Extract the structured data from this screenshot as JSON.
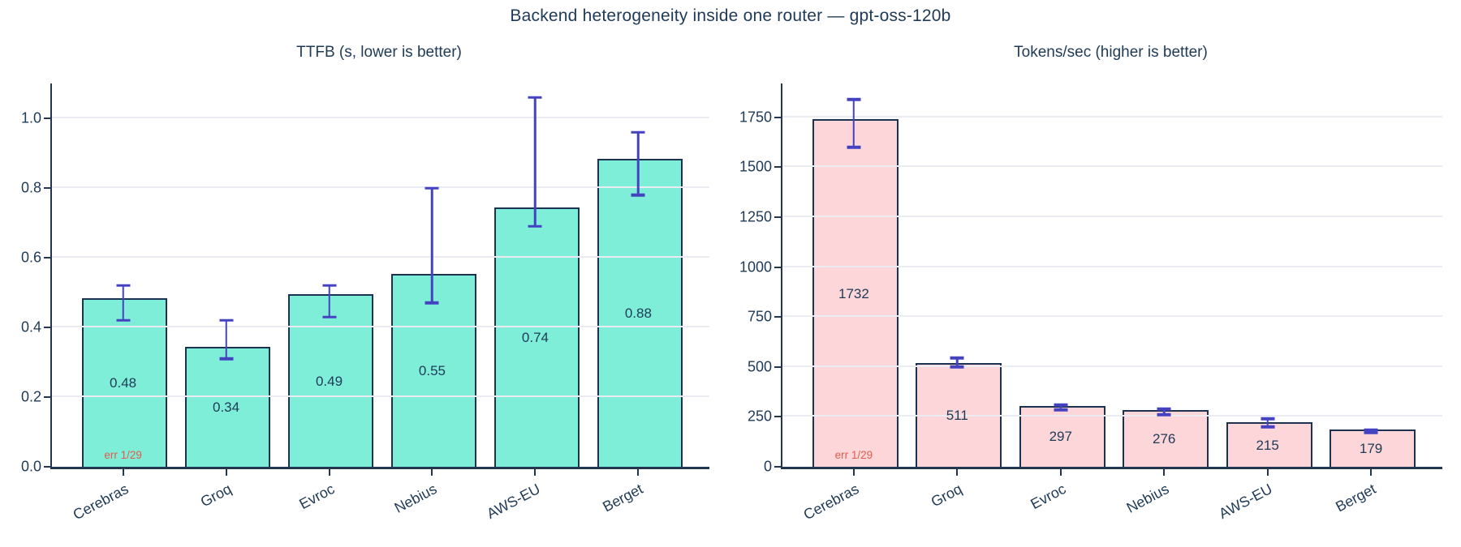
{
  "figure": {
    "title": "Backend heterogeneity inside one router — gpt-oss-120b"
  },
  "colors": {
    "background": "#ffffff",
    "text": "#1e3a56",
    "axis": "#22374f",
    "gridline": "#ebecf2",
    "bar_edge": "#1b3350",
    "error_bar": "#4542c2",
    "error_note": "#e25c4e",
    "ttfb_bar_fill": "#7feed9",
    "tokens_bar_fill": "#fcd6d8"
  },
  "chart_data": [
    {
      "type": "bar",
      "title": "TTFB (s, lower is better)",
      "categories": [
        "Cerebras",
        "Groq",
        "Evroc",
        "Nebius",
        "AWS-EU",
        "Berget"
      ],
      "values": [
        0.48,
        0.34,
        0.49,
        0.55,
        0.74,
        0.88
      ],
      "bar_labels": [
        "0.48",
        "0.34",
        "0.49",
        "0.55",
        "0.74",
        "0.88"
      ],
      "error_low": [
        0.42,
        0.31,
        0.43,
        0.47,
        0.69,
        0.78
      ],
      "error_high": [
        0.52,
        0.42,
        0.52,
        0.8,
        1.06,
        0.96
      ],
      "annotations": [
        {
          "category": "Cerebras",
          "text": "err 1/29"
        }
      ],
      "yticks": [
        0,
        0.2,
        0.4,
        0.6,
        0.8,
        1.0
      ],
      "ytick_labels": [
        "0.0",
        "0.2",
        "0.4",
        "0.6",
        "0.8",
        "1.0"
      ],
      "ylim": [
        0,
        1.1
      ],
      "bar_fill": "#7feed9",
      "grid": true,
      "legend": false,
      "xlabel": "",
      "ylabel": ""
    },
    {
      "type": "bar",
      "title": "Tokens/sec (higher is better)",
      "categories": [
        "Cerebras",
        "Groq",
        "Evroc",
        "Nebius",
        "AWS-EU",
        "Berget"
      ],
      "values": [
        1732,
        511,
        297,
        276,
        215,
        179
      ],
      "bar_labels": [
        "1732",
        "511",
        "297",
        "276",
        "215",
        "179"
      ],
      "error_low": [
        1600,
        500,
        286,
        260,
        200,
        172
      ],
      "error_high": [
        1840,
        545,
        310,
        290,
        240,
        184
      ],
      "annotations": [
        {
          "category": "Cerebras",
          "text": "err 1/29"
        }
      ],
      "yticks": [
        0,
        250,
        500,
        750,
        1000,
        1250,
        1500,
        1750
      ],
      "ytick_labels": [
        "0",
        "250",
        "500",
        "750",
        "1000",
        "1250",
        "1500",
        "1750"
      ],
      "ylim": [
        0,
        1920
      ],
      "bar_fill": "#fcd6d8",
      "grid": true,
      "legend": false,
      "xlabel": "",
      "ylabel": ""
    }
  ]
}
